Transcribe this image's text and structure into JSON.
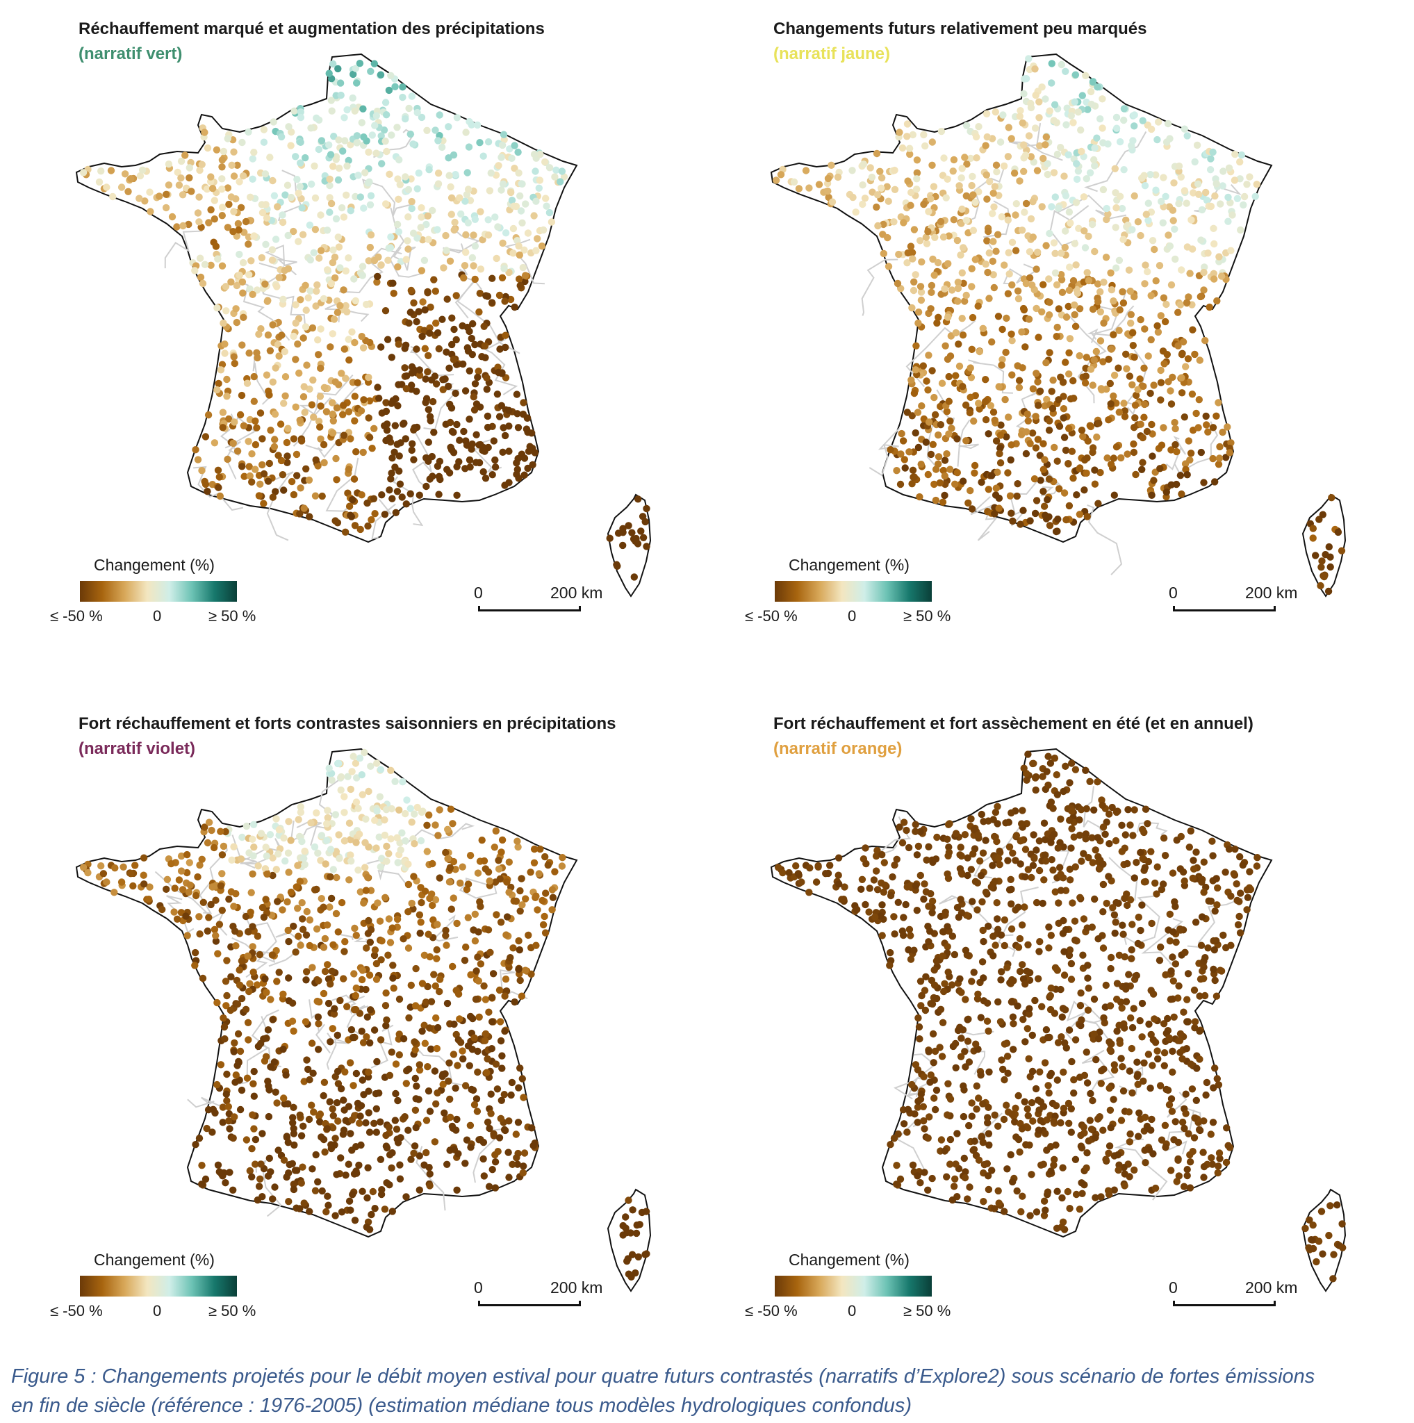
{
  "legend": {
    "title": "Changement (%)",
    "min_label": "≤ -50 %",
    "mid_label": "0",
    "max_label": "≥ 50 %",
    "scale_zero": "0",
    "scale_distance": "200 km",
    "gradient": [
      "#6b3a08",
      "#a8650f",
      "#d8a85a",
      "#f3e6c0",
      "#cfeee8",
      "#6cc2b4",
      "#17786c",
      "#0a3f38"
    ]
  },
  "panels": [
    {
      "title": "Réchauffement marqué et augmentation des précipitations",
      "subtitle": "(narratif vert)",
      "subtitle_color": "#3f8f6f",
      "palette": "vert"
    },
    {
      "title": "Changements futurs relativement peu marqués",
      "subtitle": "(narratif jaune)",
      "subtitle_color": "#e8e25a",
      "palette": "jaune"
    },
    {
      "title": "Fort réchauffement et forts contrastes saisonniers en précipitations",
      "subtitle": "(narratif violet)",
      "subtitle_color": "#7a2a5a",
      "palette": "violet"
    },
    {
      "title": "Fort réchauffement et fort assèchement en été (et en annuel)",
      "subtitle": "(narratif orange)",
      "subtitle_color": "#e0a040",
      "palette": "orange"
    }
  ],
  "caption": {
    "line1": "Figure 5 : Changements projetés pour le débit moyen estival pour quatre futurs contrastés (narratifs d’Explore2) sous scénario de fortes émissions",
    "line2": "en fin de siècle (référence : 1976-2005) (estimation médiane tous modèles hydrologiques confondus)"
  }
}
